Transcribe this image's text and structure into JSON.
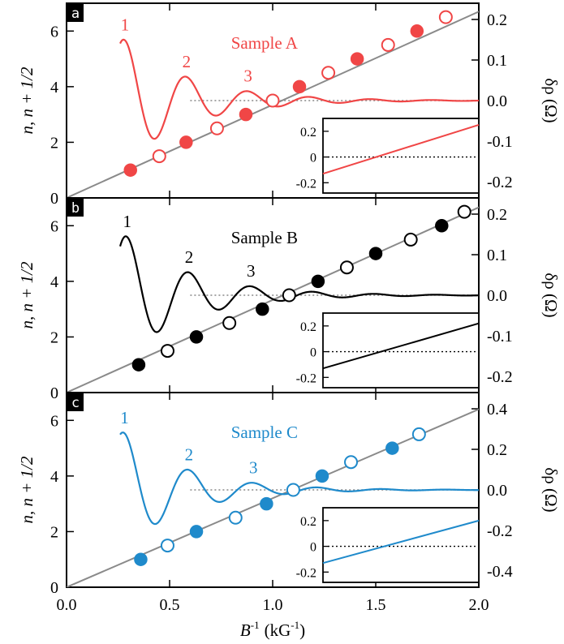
{
  "chart_data": {
    "type": "line",
    "xlabel": "B",
    "xlabel_sup": "-1",
    "xlabel_unit": "(kG",
    "xlabel_unit_sup": "-1",
    "xlabel_close": ")",
    "xlim": [
      0.0,
      2.0
    ],
    "x_ticks": [
      "0.0",
      "0.5",
      "1.0",
      "1.5",
      "2.0"
    ],
    "ylabel_left": "n, n + 1/2",
    "ylabel_right": "δρ (Ω)",
    "reference_line_color": "#8a8a8a",
    "panels": [
      {
        "tag": "a",
        "title": "Sample A",
        "color": "#f04646",
        "ylim_left": [
          0,
          7
        ],
        "left_ticks": [
          "0",
          "2",
          "4",
          "6"
        ],
        "ylim_right": [
          -0.24,
          0.24
        ],
        "right_ticks": [
          "-0.2",
          "-0.1",
          "0.0",
          "0.1",
          "0.2"
        ],
        "fan_line": {
          "slope": 3.35,
          "intercept": 0.0
        },
        "oscillation": {
          "x_start": 0.26,
          "x_end": 2.0,
          "baseline": 0.0,
          "amplitude": 0.16,
          "freq": 3.35,
          "phase": 0.05,
          "damping": 0.32
        },
        "peak_labels": [
          "1",
          "2",
          "3"
        ],
        "filled_points": [
          {
            "x": 0.31,
            "y": 1
          },
          {
            "x": 0.58,
            "y": 2
          },
          {
            "x": 0.87,
            "y": 3
          },
          {
            "x": 1.13,
            "y": 4
          },
          {
            "x": 1.41,
            "y": 5
          },
          {
            "x": 1.7,
            "y": 6
          }
        ],
        "open_points": [
          {
            "x": 0.45,
            "y": 1.5
          },
          {
            "x": 0.73,
            "y": 2.5
          },
          {
            "x": 1.0,
            "y": 3.5
          },
          {
            "x": 1.27,
            "y": 4.5
          },
          {
            "x": 1.56,
            "y": 5.5
          },
          {
            "x": 1.84,
            "y": 6.5
          }
        ],
        "inset": {
          "ylim": [
            -0.28,
            0.3
          ],
          "ticks": [
            "0.2",
            "0",
            "-0.2"
          ],
          "line": [
            [
              0,
              -0.13
            ],
            [
              1,
              0.25
            ]
          ]
        }
      },
      {
        "tag": "b",
        "title": "Sample B",
        "color": "#000000",
        "ylim_left": [
          0,
          7
        ],
        "left_ticks": [
          "0",
          "2",
          "4",
          "6"
        ],
        "ylim_right": [
          -0.24,
          0.24
        ],
        "right_ticks": [
          "-0.2",
          "-0.1",
          "0.0",
          "0.1",
          "0.2"
        ],
        "fan_line": {
          "slope": 3.33,
          "intercept": 0.0
        },
        "oscillation": {
          "x_start": 0.26,
          "x_end": 2.0,
          "baseline": 0.0,
          "amplitude": 0.16,
          "freq": 3.33,
          "phase": 0.02,
          "damping": 0.32
        },
        "peak_labels": [
          "1",
          "2",
          "3"
        ],
        "filled_points": [
          {
            "x": 0.35,
            "y": 1
          },
          {
            "x": 0.63,
            "y": 2
          },
          {
            "x": 0.95,
            "y": 3
          },
          {
            "x": 1.22,
            "y": 4
          },
          {
            "x": 1.5,
            "y": 5
          },
          {
            "x": 1.82,
            "y": 6
          }
        ],
        "open_points": [
          {
            "x": 0.49,
            "y": 1.5
          },
          {
            "x": 0.79,
            "y": 2.5
          },
          {
            "x": 1.08,
            "y": 3.5
          },
          {
            "x": 1.36,
            "y": 4.5
          },
          {
            "x": 1.67,
            "y": 5.5
          },
          {
            "x": 1.93,
            "y": 6.5
          }
        ],
        "inset": {
          "ylim": [
            -0.28,
            0.3
          ],
          "ticks": [
            "0.2",
            "0",
            "-0.2"
          ],
          "line": [
            [
              0,
              -0.13
            ],
            [
              1,
              0.22
            ]
          ]
        }
      },
      {
        "tag": "c",
        "title": "Sample C",
        "color": "#1f8acb",
        "ylim_left": [
          0,
          7
        ],
        "left_ticks": [
          "0",
          "2",
          "4",
          "6"
        ],
        "ylim_right": [
          -0.48,
          0.48
        ],
        "right_ticks": [
          "-0.4",
          "-0.2",
          "0.0",
          "0.2",
          "0.4"
        ],
        "fan_line": {
          "slope": 3.2,
          "intercept": 0.0
        },
        "oscillation": {
          "x_start": 0.26,
          "x_end": 2.0,
          "baseline": 0.0,
          "amplitude": 0.3,
          "freq": 3.2,
          "phase": 0.1,
          "damping": 0.3
        },
        "peak_labels": [
          "1",
          "2",
          "3"
        ],
        "filled_points": [
          {
            "x": 0.36,
            "y": 1
          },
          {
            "x": 0.63,
            "y": 2
          },
          {
            "x": 0.97,
            "y": 3
          },
          {
            "x": 1.24,
            "y": 4
          },
          {
            "x": 1.58,
            "y": 5
          }
        ],
        "open_points": [
          {
            "x": 0.49,
            "y": 1.5
          },
          {
            "x": 0.82,
            "y": 2.5
          },
          {
            "x": 1.1,
            "y": 3.5
          },
          {
            "x": 1.38,
            "y": 4.5
          },
          {
            "x": 1.71,
            "y": 5.5
          }
        ],
        "inset": {
          "ylim": [
            -0.28,
            0.3
          ],
          "ticks": [
            "0.2",
            "0",
            "-0.2"
          ],
          "line": [
            [
              0,
              -0.13
            ],
            [
              1,
              0.2
            ]
          ]
        }
      }
    ]
  }
}
